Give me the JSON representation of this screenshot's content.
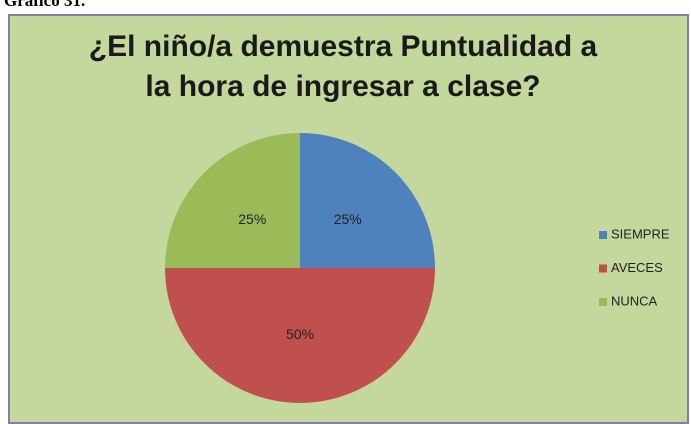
{
  "caption": "Gráfico 31.",
  "chart_data": {
    "type": "pie",
    "title": "¿El niño/a  demuestra  Puntualidad a\nla hora de ingresar a clase?",
    "categories": [
      "SIEMPRE",
      "AVECES",
      "NUNCA"
    ],
    "values": [
      25,
      50,
      25
    ],
    "value_labels": [
      "25%",
      "50%",
      "25%"
    ],
    "colors": [
      "#4f81bd",
      "#c0504d",
      "#9bbb59"
    ],
    "legend": "right"
  }
}
